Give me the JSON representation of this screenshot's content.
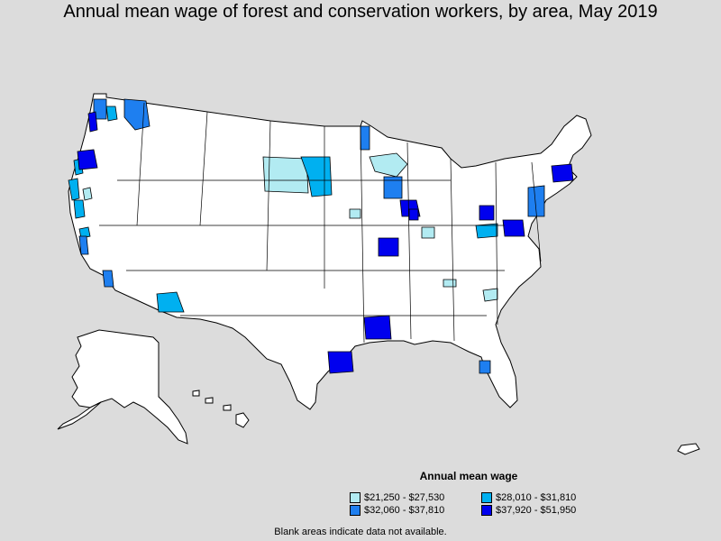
{
  "title": "Annual mean wage of forest and conservation workers, by area, May 2019",
  "legend": {
    "title": "Annual mean wage",
    "items": [
      {
        "label": "$21,250 - $27,530",
        "color": "#b2ebf2"
      },
      {
        "label": "$28,010 - $31,810",
        "color": "#00b0f0"
      },
      {
        "label": "$32,060 - $37,810",
        "color": "#1e7ff0"
      },
      {
        "label": "$37,920 - $51,950",
        "color": "#0000ee"
      }
    ]
  },
  "footnote": "Blank areas indicate data not available.",
  "colors": {
    "background": "#dcdcdc",
    "no_data": "#ffffff",
    "border": "#000000"
  },
  "regions": [
    {
      "area": "Western Washington",
      "bin": 3
    },
    {
      "area": "Puget Sound",
      "bin": 2
    },
    {
      "area": "Eastern Washington",
      "bin": 2
    },
    {
      "area": "Northwestern Oregon",
      "bin": 3
    },
    {
      "area": "Southwestern Oregon coast",
      "bin": 1
    },
    {
      "area": "Northern California coast",
      "bin": 1
    },
    {
      "area": "Central California",
      "bin": 1
    },
    {
      "area": "Southern California",
      "bin": 2
    },
    {
      "area": "Arizona",
      "bin": 1
    },
    {
      "area": "North Dakota east",
      "bin": 1
    },
    {
      "area": "Minnesota",
      "bin": 1
    },
    {
      "area": "Northern Michigan",
      "bin": 0
    },
    {
      "area": "Upper Peninsula",
      "bin": 2
    },
    {
      "area": "Wisconsin",
      "bin": 2
    },
    {
      "area": "Illinois",
      "bin": 3
    },
    {
      "area": "St. Louis",
      "bin": 3
    },
    {
      "area": "Louisiana",
      "bin": 3
    },
    {
      "area": "Houston",
      "bin": 3
    },
    {
      "area": "Ohio",
      "bin": 3
    },
    {
      "area": "West Virginia",
      "bin": 1
    },
    {
      "area": "Virginia",
      "bin": 3
    },
    {
      "area": "New Jersey",
      "bin": 2
    },
    {
      "area": "Massachusetts",
      "bin": 3
    },
    {
      "area": "South Carolina",
      "bin": 0
    },
    {
      "area": "Florida west coast",
      "bin": 2
    },
    {
      "area": "Iowa",
      "bin": 0
    },
    {
      "area": "Indiana",
      "bin": 0
    },
    {
      "area": "Tennessee",
      "bin": 0
    }
  ]
}
